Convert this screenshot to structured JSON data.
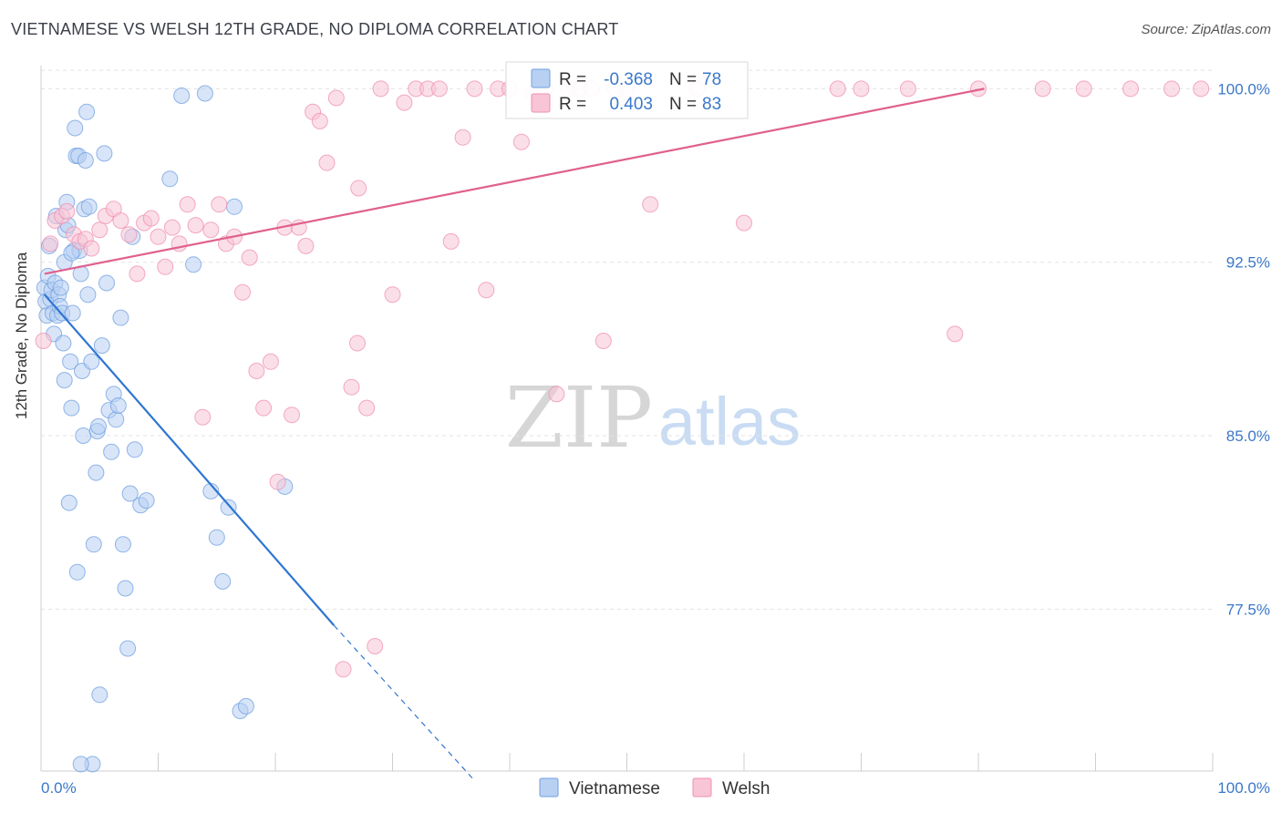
{
  "header": {
    "title": "VIETNAMESE VS WELSH 12TH GRADE, NO DIPLOMA CORRELATION CHART",
    "source": "Source: ZipAtlas.com"
  },
  "watermark": {
    "zip": "ZIP",
    "atlas": "atlas"
  },
  "colors": {
    "vietnamese": "#6f9fe0",
    "vietnamese_fill": "#b8d0f2",
    "vietnamese_line": "#2f76d2",
    "welsh": "#ef8fb0",
    "welsh_fill": "#f7c5d6",
    "welsh_line": "#e0608e",
    "value_text": "#3b78c9",
    "grid": "#e3e3e3"
  },
  "chart_data": {
    "type": "scatter",
    "title": "VIETNAMESE VS WELSH 12TH GRADE, NO DIPLOMA CORRELATION CHART",
    "xlabel": "",
    "ylabel": "12th Grade, No Diploma",
    "xlim": [
      0,
      100
    ],
    "ylim": [
      70.5,
      101
    ],
    "x_tick_labels": [
      "0.0%",
      "100.0%"
    ],
    "y_ticks": [
      77.5,
      85.0,
      92.5,
      100.0
    ],
    "y_tick_labels": [
      "77.5%",
      "85.0%",
      "92.5%",
      "100.0%"
    ],
    "grid": true,
    "legend_position": "top-center",
    "stats": [
      {
        "series": "Vietnamese",
        "r_label": "R =",
        "r": "-0.368",
        "n_label": "N =",
        "n": "78"
      },
      {
        "series": "Welsh",
        "r_label": "R =",
        "r": "0.403",
        "n_label": "N =",
        "n": "83"
      }
    ],
    "series": [
      {
        "name": "Vietnamese",
        "trend": {
          "x": [
            0.3,
            25.0
          ],
          "y": [
            91.1,
            76.8
          ],
          "dashed_to": [
            36.8,
            70.2
          ]
        },
        "points": [
          [
            0.3,
            91.4
          ],
          [
            0.4,
            90.8
          ],
          [
            0.5,
            90.2
          ],
          [
            0.6,
            91.9
          ],
          [
            0.7,
            93.2
          ],
          [
            0.8,
            90.9
          ],
          [
            0.9,
            91.3
          ],
          [
            1.0,
            90.3
          ],
          [
            1.1,
            89.4
          ],
          [
            1.2,
            91.6
          ],
          [
            1.3,
            94.5
          ],
          [
            1.4,
            90.2
          ],
          [
            1.5,
            91.1
          ],
          [
            1.6,
            90.6
          ],
          [
            1.7,
            91.4
          ],
          [
            1.8,
            90.3
          ],
          [
            1.9,
            89.0
          ],
          [
            2.0,
            92.5
          ],
          [
            2.0,
            87.4
          ],
          [
            2.1,
            93.9
          ],
          [
            2.2,
            95.1
          ],
          [
            2.3,
            94.1
          ],
          [
            2.4,
            82.1
          ],
          [
            2.5,
            88.2
          ],
          [
            2.6,
            86.2
          ],
          [
            2.7,
            90.3
          ],
          [
            2.8,
            93.0
          ],
          [
            2.9,
            98.3
          ],
          [
            3.0,
            97.1
          ],
          [
            3.1,
            79.1
          ],
          [
            3.2,
            97.1
          ],
          [
            3.3,
            93.0
          ],
          [
            3.4,
            92.0
          ],
          [
            3.5,
            87.8
          ],
          [
            3.6,
            85.0
          ],
          [
            3.7,
            94.8
          ],
          [
            3.8,
            96.9
          ],
          [
            3.9,
            99.0
          ],
          [
            4.0,
            91.1
          ],
          [
            4.1,
            94.9
          ],
          [
            4.3,
            88.2
          ],
          [
            4.5,
            80.3
          ],
          [
            4.7,
            83.4
          ],
          [
            4.8,
            85.2
          ],
          [
            4.9,
            85.4
          ],
          [
            5.0,
            73.8
          ],
          [
            5.2,
            88.9
          ],
          [
            5.4,
            97.2
          ],
          [
            5.6,
            91.6
          ],
          [
            5.8,
            86.1
          ],
          [
            6.0,
            84.3
          ],
          [
            6.2,
            86.8
          ],
          [
            6.4,
            85.7
          ],
          [
            6.6,
            86.3
          ],
          [
            6.8,
            90.1
          ],
          [
            7.0,
            80.3
          ],
          [
            7.2,
            78.4
          ],
          [
            7.4,
            75.8
          ],
          [
            7.6,
            82.5
          ],
          [
            7.8,
            93.6
          ],
          [
            8.0,
            84.4
          ],
          [
            8.5,
            82.0
          ],
          [
            9.0,
            82.2
          ],
          [
            11.0,
            96.1
          ],
          [
            12.0,
            99.7
          ],
          [
            13.0,
            92.4
          ],
          [
            14.0,
            99.8
          ],
          [
            14.5,
            82.6
          ],
          [
            15.0,
            80.6
          ],
          [
            15.5,
            78.7
          ],
          [
            16.0,
            81.9
          ],
          [
            16.5,
            94.9
          ],
          [
            17.0,
            73.1
          ],
          [
            17.5,
            73.3
          ],
          [
            20.8,
            82.8
          ],
          [
            4.4,
            70.8
          ],
          [
            3.4,
            70.8
          ],
          [
            2.6,
            92.9
          ]
        ]
      },
      {
        "name": "Welsh",
        "trend": {
          "x": [
            0.3,
            80.5
          ],
          "y": [
            92.0,
            100.0
          ]
        },
        "points": [
          [
            0.2,
            89.1
          ],
          [
            0.8,
            93.3
          ],
          [
            1.2,
            94.3
          ],
          [
            1.8,
            94.5
          ],
          [
            2.2,
            94.7
          ],
          [
            2.8,
            93.7
          ],
          [
            3.3,
            93.4
          ],
          [
            3.8,
            93.5
          ],
          [
            4.3,
            93.1
          ],
          [
            5.0,
            93.9
          ],
          [
            5.5,
            94.5
          ],
          [
            6.2,
            94.8
          ],
          [
            6.8,
            94.3
          ],
          [
            7.5,
            93.7
          ],
          [
            8.2,
            92.0
          ],
          [
            8.8,
            94.2
          ],
          [
            9.4,
            94.4
          ],
          [
            10.0,
            93.6
          ],
          [
            10.6,
            92.3
          ],
          [
            11.2,
            94.0
          ],
          [
            11.8,
            93.3
          ],
          [
            12.5,
            95.0
          ],
          [
            13.2,
            94.1
          ],
          [
            13.8,
            85.8
          ],
          [
            14.5,
            93.9
          ],
          [
            15.2,
            95.0
          ],
          [
            15.8,
            93.3
          ],
          [
            16.5,
            93.6
          ],
          [
            17.2,
            91.2
          ],
          [
            17.8,
            92.7
          ],
          [
            18.4,
            87.8
          ],
          [
            19.0,
            86.2
          ],
          [
            19.6,
            88.2
          ],
          [
            20.2,
            83.0
          ],
          [
            20.8,
            94.0
          ],
          [
            21.4,
            85.9
          ],
          [
            22.0,
            94.0
          ],
          [
            22.6,
            93.2
          ],
          [
            23.2,
            99.0
          ],
          [
            23.8,
            98.6
          ],
          [
            24.4,
            96.8
          ],
          [
            25.2,
            99.6
          ],
          [
            25.8,
            74.9
          ],
          [
            26.5,
            87.1
          ],
          [
            27.1,
            95.7
          ],
          [
            27.8,
            86.2
          ],
          [
            28.5,
            75.9
          ],
          [
            29.0,
            100.0
          ],
          [
            30.0,
            91.1
          ],
          [
            31.0,
            99.4
          ],
          [
            32.0,
            100.0
          ],
          [
            33.0,
            100.0
          ],
          [
            34.0,
            100.0
          ],
          [
            35.0,
            93.4
          ],
          [
            36.0,
            97.9
          ],
          [
            37.0,
            100.0
          ],
          [
            38.0,
            91.3
          ],
          [
            39.0,
            100.0
          ],
          [
            40.0,
            100.0
          ],
          [
            41.0,
            97.7
          ],
          [
            42.0,
            99.8
          ],
          [
            43.0,
            100.0
          ],
          [
            44.0,
            86.8
          ],
          [
            45.0,
            100.0
          ],
          [
            46.0,
            100.0
          ],
          [
            47.0,
            100.0
          ],
          [
            48.0,
            89.1
          ],
          [
            49.0,
            100.0
          ],
          [
            50.0,
            100.0
          ],
          [
            52.0,
            95.0
          ],
          [
            56.0,
            100.0
          ],
          [
            60.0,
            94.2
          ],
          [
            68.0,
            100.0
          ],
          [
            70.0,
            100.0
          ],
          [
            74.0,
            100.0
          ],
          [
            78.0,
            89.4
          ],
          [
            80.0,
            100.0
          ],
          [
            85.5,
            100.0
          ],
          [
            89.0,
            100.0
          ],
          [
            93.0,
            100.0
          ],
          [
            96.5,
            100.0
          ],
          [
            99.0,
            100.0
          ],
          [
            27.0,
            89.0
          ]
        ]
      }
    ]
  }
}
